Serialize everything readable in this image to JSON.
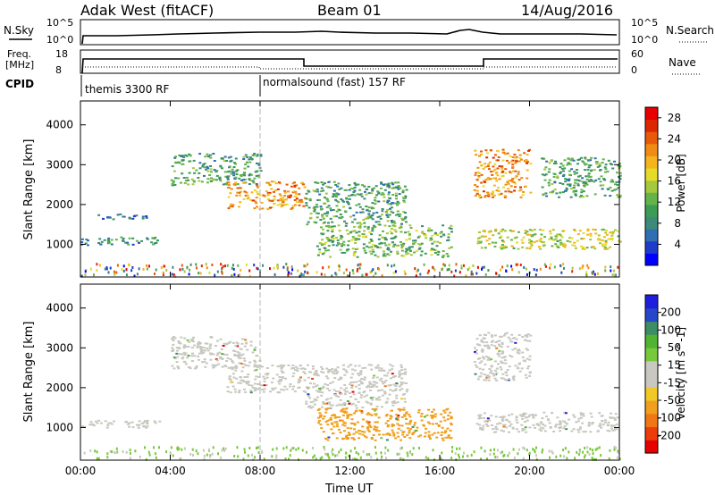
{
  "header": {
    "station": "Adak West (fitACF)",
    "beam": "Beam 01",
    "date": "14/Aug/2016"
  },
  "strips": {
    "nsky": {
      "label": "N.Sky",
      "ticks": [
        "10^5",
        "10^0"
      ]
    },
    "nsearch": {
      "label": "N.Search",
      "ticks": [
        "10^5",
        "10^0"
      ]
    },
    "freq": {
      "label_line1": "Freq.",
      "label_line2": "[MHz]",
      "ticks": [
        "18",
        "8"
      ]
    },
    "nave": {
      "label": "Nave",
      "ticks": [
        "60",
        "0"
      ]
    },
    "cpid": {
      "label": "CPID",
      "programs": [
        "themis 3300 RF",
        "normalsound (fast) 157 RF"
      ]
    }
  },
  "colors": {
    "power_scale": [
      "#0000ff",
      "#1e3cc8",
      "#2f6db5",
      "#3e8a7a",
      "#3c9b55",
      "#64b44b",
      "#a5c83c",
      "#e6dc28",
      "#f5b41e",
      "#f08c14",
      "#e65a0a",
      "#dc2800",
      "#e60000"
    ],
    "velocity_scale": [
      "#1e1edc",
      "#2846c8",
      "#3c8c64",
      "#50b432",
      "#78c83c",
      "#c8c8c0",
      "#c8c8c0",
      "#f0c828",
      "#f0a01e",
      "#f07814",
      "#eb3c0a",
      "#e60000"
    ]
  },
  "chart_data": [
    {
      "type": "heatmap",
      "title": "",
      "xlabel": "Time UT",
      "ylabel": "Slant Range [km]",
      "x_ticks": [
        "00:00",
        "04:00",
        "08:00",
        "12:00",
        "16:00",
        "20:00",
        "00:00"
      ],
      "xlim": [
        0,
        24
      ],
      "y_ticks": [
        "1000",
        "2000",
        "3000",
        "4000"
      ],
      "ylim": [
        180,
        4600
      ],
      "colorbar": {
        "label": "Power [dB]",
        "ticks": [
          "4",
          "8",
          "12",
          "16",
          "20",
          "24",
          "28"
        ],
        "range": [
          0,
          30
        ]
      },
      "echo_regions": [
        {
          "t": [
            0.0,
            3.6
          ],
          "range_km": [
            1000,
            1200
          ],
          "value": 8
        },
        {
          "t": [
            0.7,
            3.0
          ],
          "range_km": [
            1650,
            1800
          ],
          "value": 6
        },
        {
          "t": [
            4.0,
            8.0
          ],
          "range_km": [
            2500,
            3300
          ],
          "value": 10
        },
        {
          "t": [
            6.5,
            10.0
          ],
          "range_km": [
            1900,
            2600
          ],
          "value": 22
        },
        {
          "t": [
            10.0,
            14.5
          ],
          "range_km": [
            1500,
            2600
          ],
          "value": 10
        },
        {
          "t": [
            10.5,
            16.5
          ],
          "range_km": [
            700,
            1500
          ],
          "value": 12
        },
        {
          "t": [
            17.5,
            24.0
          ],
          "range_km": [
            900,
            1400
          ],
          "value": 16
        },
        {
          "t": [
            17.5,
            20.0
          ],
          "range_km": [
            2200,
            3400
          ],
          "value": 22
        },
        {
          "t": [
            20.5,
            24.0
          ],
          "range_km": [
            2200,
            3200
          ],
          "value": 10
        }
      ]
    },
    {
      "type": "heatmap",
      "title": "",
      "xlabel": "Time UT",
      "ylabel": "Slant Range [km]",
      "x_ticks": [
        "00:00",
        "04:00",
        "08:00",
        "12:00",
        "16:00",
        "20:00",
        "00:00"
      ],
      "xlim": [
        0,
        24
      ],
      "y_ticks": [
        "1000",
        "2000",
        "3000",
        "4000"
      ],
      "ylim": [
        180,
        4600
      ],
      "colorbar": {
        "label": "Velocity [m s^-1]",
        "ticks": [
          "200",
          "100",
          "50",
          "15",
          "-15",
          "-50",
          "-100",
          "-200"
        ]
      },
      "echo_regions": [
        {
          "t": [
            0.0,
            3.6
          ],
          "range_km": [
            1000,
            1200
          ],
          "value": 0
        },
        {
          "t": [
            4.0,
            8.0
          ],
          "range_km": [
            2500,
            3300
          ],
          "value": 0
        },
        {
          "t": [
            6.5,
            10.0
          ],
          "range_km": [
            1900,
            2600
          ],
          "value": 0
        },
        {
          "t": [
            10.0,
            14.5
          ],
          "range_km": [
            1500,
            2600
          ],
          "value": 0
        },
        {
          "t": [
            10.5,
            16.5
          ],
          "range_km": [
            700,
            1500
          ],
          "value": -40
        },
        {
          "t": [
            17.5,
            24.0
          ],
          "range_km": [
            900,
            1400
          ],
          "value": 0
        },
        {
          "t": [
            17.5,
            20.0
          ],
          "range_km": [
            2200,
            3400
          ],
          "value": 0
        }
      ]
    }
  ]
}
